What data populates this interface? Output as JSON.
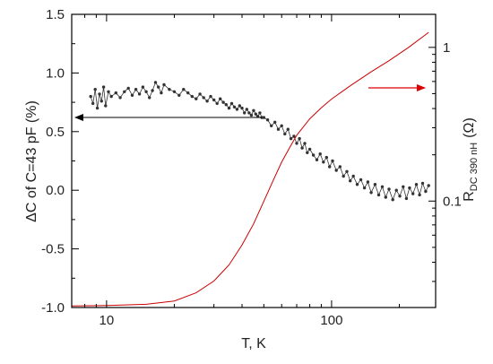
{
  "chart_data": {
    "type": "scatter",
    "xlabel": "T, K",
    "ylabel_left": "ΔC of C=43 pF  (%)",
    "ylabel_right_main": "R",
    "ylabel_right_sub": "DC 390 nH",
    "ylabel_right_unit": "(Ω)",
    "x_scale": "log",
    "xlim": [
      7,
      290
    ],
    "x_ticks": [
      {
        "value": 10,
        "label": "10"
      },
      {
        "value": 100,
        "label": "100"
      }
    ],
    "y_left_lim": [
      -1.0,
      1.5
    ],
    "y_left_ticks": [
      {
        "value": -1.0,
        "label": "-1.0"
      },
      {
        "value": -0.5,
        "label": "-0.5"
      },
      {
        "value": 0.0,
        "label": "0.0"
      },
      {
        "value": 0.5,
        "label": "0.5"
      },
      {
        "value": 1.0,
        "label": "1.0"
      },
      {
        "value": 1.5,
        "label": "1.5"
      }
    ],
    "y_right_scale": "log",
    "y_right_lim": [
      0.0203,
      1.64
    ],
    "y_right_ticks": [
      {
        "value": 0.1,
        "label": "0.1"
      },
      {
        "value": 1,
        "label": "1"
      }
    ],
    "grid": false,
    "colors": {
      "capacitance": "#333333",
      "resistance": "#cc0000",
      "arrow_left": "#000000",
      "arrow_right": "#dd0000"
    },
    "series": [
      {
        "axis": "left",
        "style": "line+markers",
        "x": [
          8.5,
          8.7,
          8.9,
          9.1,
          9.3,
          9.5,
          9.7,
          9.9,
          10.2,
          10.5,
          11,
          11.5,
          12,
          12.5,
          13,
          13.5,
          14,
          14.5,
          15,
          15.5,
          16,
          16.5,
          17,
          17.5,
          18,
          19,
          20,
          21,
          22,
          23,
          24,
          25,
          26,
          27,
          28,
          29,
          30,
          31,
          32,
          33,
          34,
          35,
          36,
          37,
          38,
          39,
          40,
          41,
          42,
          43,
          44,
          45,
          46,
          47,
          48,
          49,
          50,
          52,
          54,
          56,
          58,
          60,
          62,
          64,
          66,
          68,
          70,
          72,
          74,
          76,
          78,
          80,
          83,
          86,
          89,
          92,
          95,
          98,
          101,
          105,
          109,
          113,
          117,
          121,
          125,
          130,
          135,
          140,
          145,
          150,
          156,
          162,
          168,
          174,
          180,
          187,
          194,
          201,
          208,
          215,
          222,
          230,
          238,
          246,
          254,
          262,
          270
        ],
        "y": [
          0.8,
          0.74,
          0.86,
          0.7,
          0.82,
          0.76,
          0.88,
          0.72,
          0.84,
          0.8,
          0.83,
          0.79,
          0.84,
          0.87,
          0.81,
          0.86,
          0.82,
          0.88,
          0.84,
          0.79,
          0.85,
          0.92,
          0.88,
          0.83,
          0.9,
          0.86,
          0.84,
          0.81,
          0.86,
          0.83,
          0.8,
          0.78,
          0.82,
          0.79,
          0.76,
          0.8,
          0.77,
          0.74,
          0.78,
          0.75,
          0.73,
          0.7,
          0.74,
          0.71,
          0.69,
          0.72,
          0.7,
          0.66,
          0.69,
          0.66,
          0.64,
          0.68,
          0.65,
          0.63,
          0.66,
          0.62,
          0.62,
          0.6,
          0.55,
          0.58,
          0.52,
          0.55,
          0.48,
          0.52,
          0.44,
          0.46,
          0.4,
          0.44,
          0.36,
          0.4,
          0.32,
          0.35,
          0.3,
          0.26,
          0.31,
          0.24,
          0.28,
          0.2,
          0.25,
          0.17,
          0.2,
          0.12,
          0.16,
          0.08,
          0.12,
          0.05,
          0.09,
          0.02,
          0.07,
          -0.02,
          0.05,
          -0.04,
          0.03,
          -0.06,
          0.01,
          -0.08,
          0.0,
          -0.05,
          0.03,
          -0.07,
          0.02,
          -0.03,
          0.05,
          -0.04,
          0.06,
          -0.01,
          0.04
        ]
      },
      {
        "axis": "right",
        "style": "line",
        "x": [
          7,
          10,
          15,
          20,
          25,
          30,
          35,
          40,
          45,
          50,
          55,
          60,
          65,
          70,
          80,
          90,
          100,
          120,
          150,
          180,
          220,
          270
        ],
        "y": [
          0.0208,
          0.0209,
          0.0213,
          0.0224,
          0.0253,
          0.0302,
          0.0384,
          0.0518,
          0.0711,
          0.1,
          0.136,
          0.179,
          0.222,
          0.268,
          0.343,
          0.404,
          0.461,
          0.558,
          0.693,
          0.819,
          1.0,
          1.252
        ]
      }
    ]
  }
}
